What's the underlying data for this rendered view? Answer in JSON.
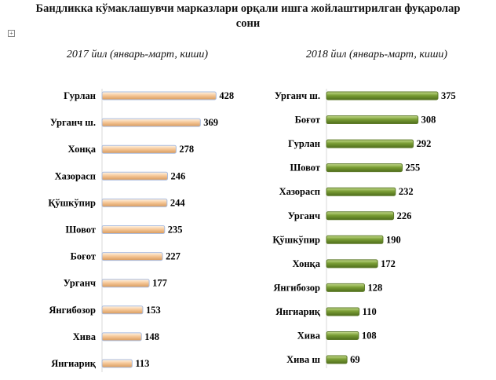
{
  "title": {
    "line1": "Бандликка кўмаклашувчи марказлари орқали ишга жойлаштирилган фуқаролар",
    "line2": "сони"
  },
  "chart_data": [
    {
      "type": "bar",
      "orientation": "horizontal",
      "title": "2017 йил (январь-март, киши)",
      "categories": [
        "Гурлан",
        "Урганч ш.",
        "Хонқа",
        "Хазорасп",
        "Қўшкўпир",
        "Шовот",
        "Боғот",
        "Урганч",
        "Янгибозор",
        "Хива",
        "Янгиариқ"
      ],
      "values": [
        428,
        369,
        278,
        246,
        244,
        235,
        227,
        177,
        153,
        148,
        113
      ],
      "xlim": [
        0,
        430
      ],
      "grid": false,
      "colors": {
        "fill_light": "#fff4e6",
        "fill_mid": "#f6c99a",
        "fill_dark": "#d89a5c",
        "edge": "#a9bcdf"
      }
    },
    {
      "type": "bar",
      "orientation": "horizontal",
      "title": "2018 йил (январь-март, киши)",
      "categories": [
        "Урганч ш.",
        "Боғот",
        "Гурлан",
        "Шовот",
        "Хазорасп",
        "Урганч",
        "Қўшкўпир",
        "Хонқа",
        "Янгибозор",
        "Янгиариқ",
        "Хива",
        "Хива ш"
      ],
      "values": [
        375,
        308,
        292,
        255,
        232,
        226,
        190,
        172,
        128,
        110,
        108,
        69
      ],
      "xlim": [
        0,
        375
      ],
      "grid": false,
      "colors": {
        "fill_light": "#c6dc8e",
        "fill_mid": "#7a9e35",
        "fill_dark": "#4f6e1c",
        "edge": "#5d7a2a"
      }
    }
  ]
}
